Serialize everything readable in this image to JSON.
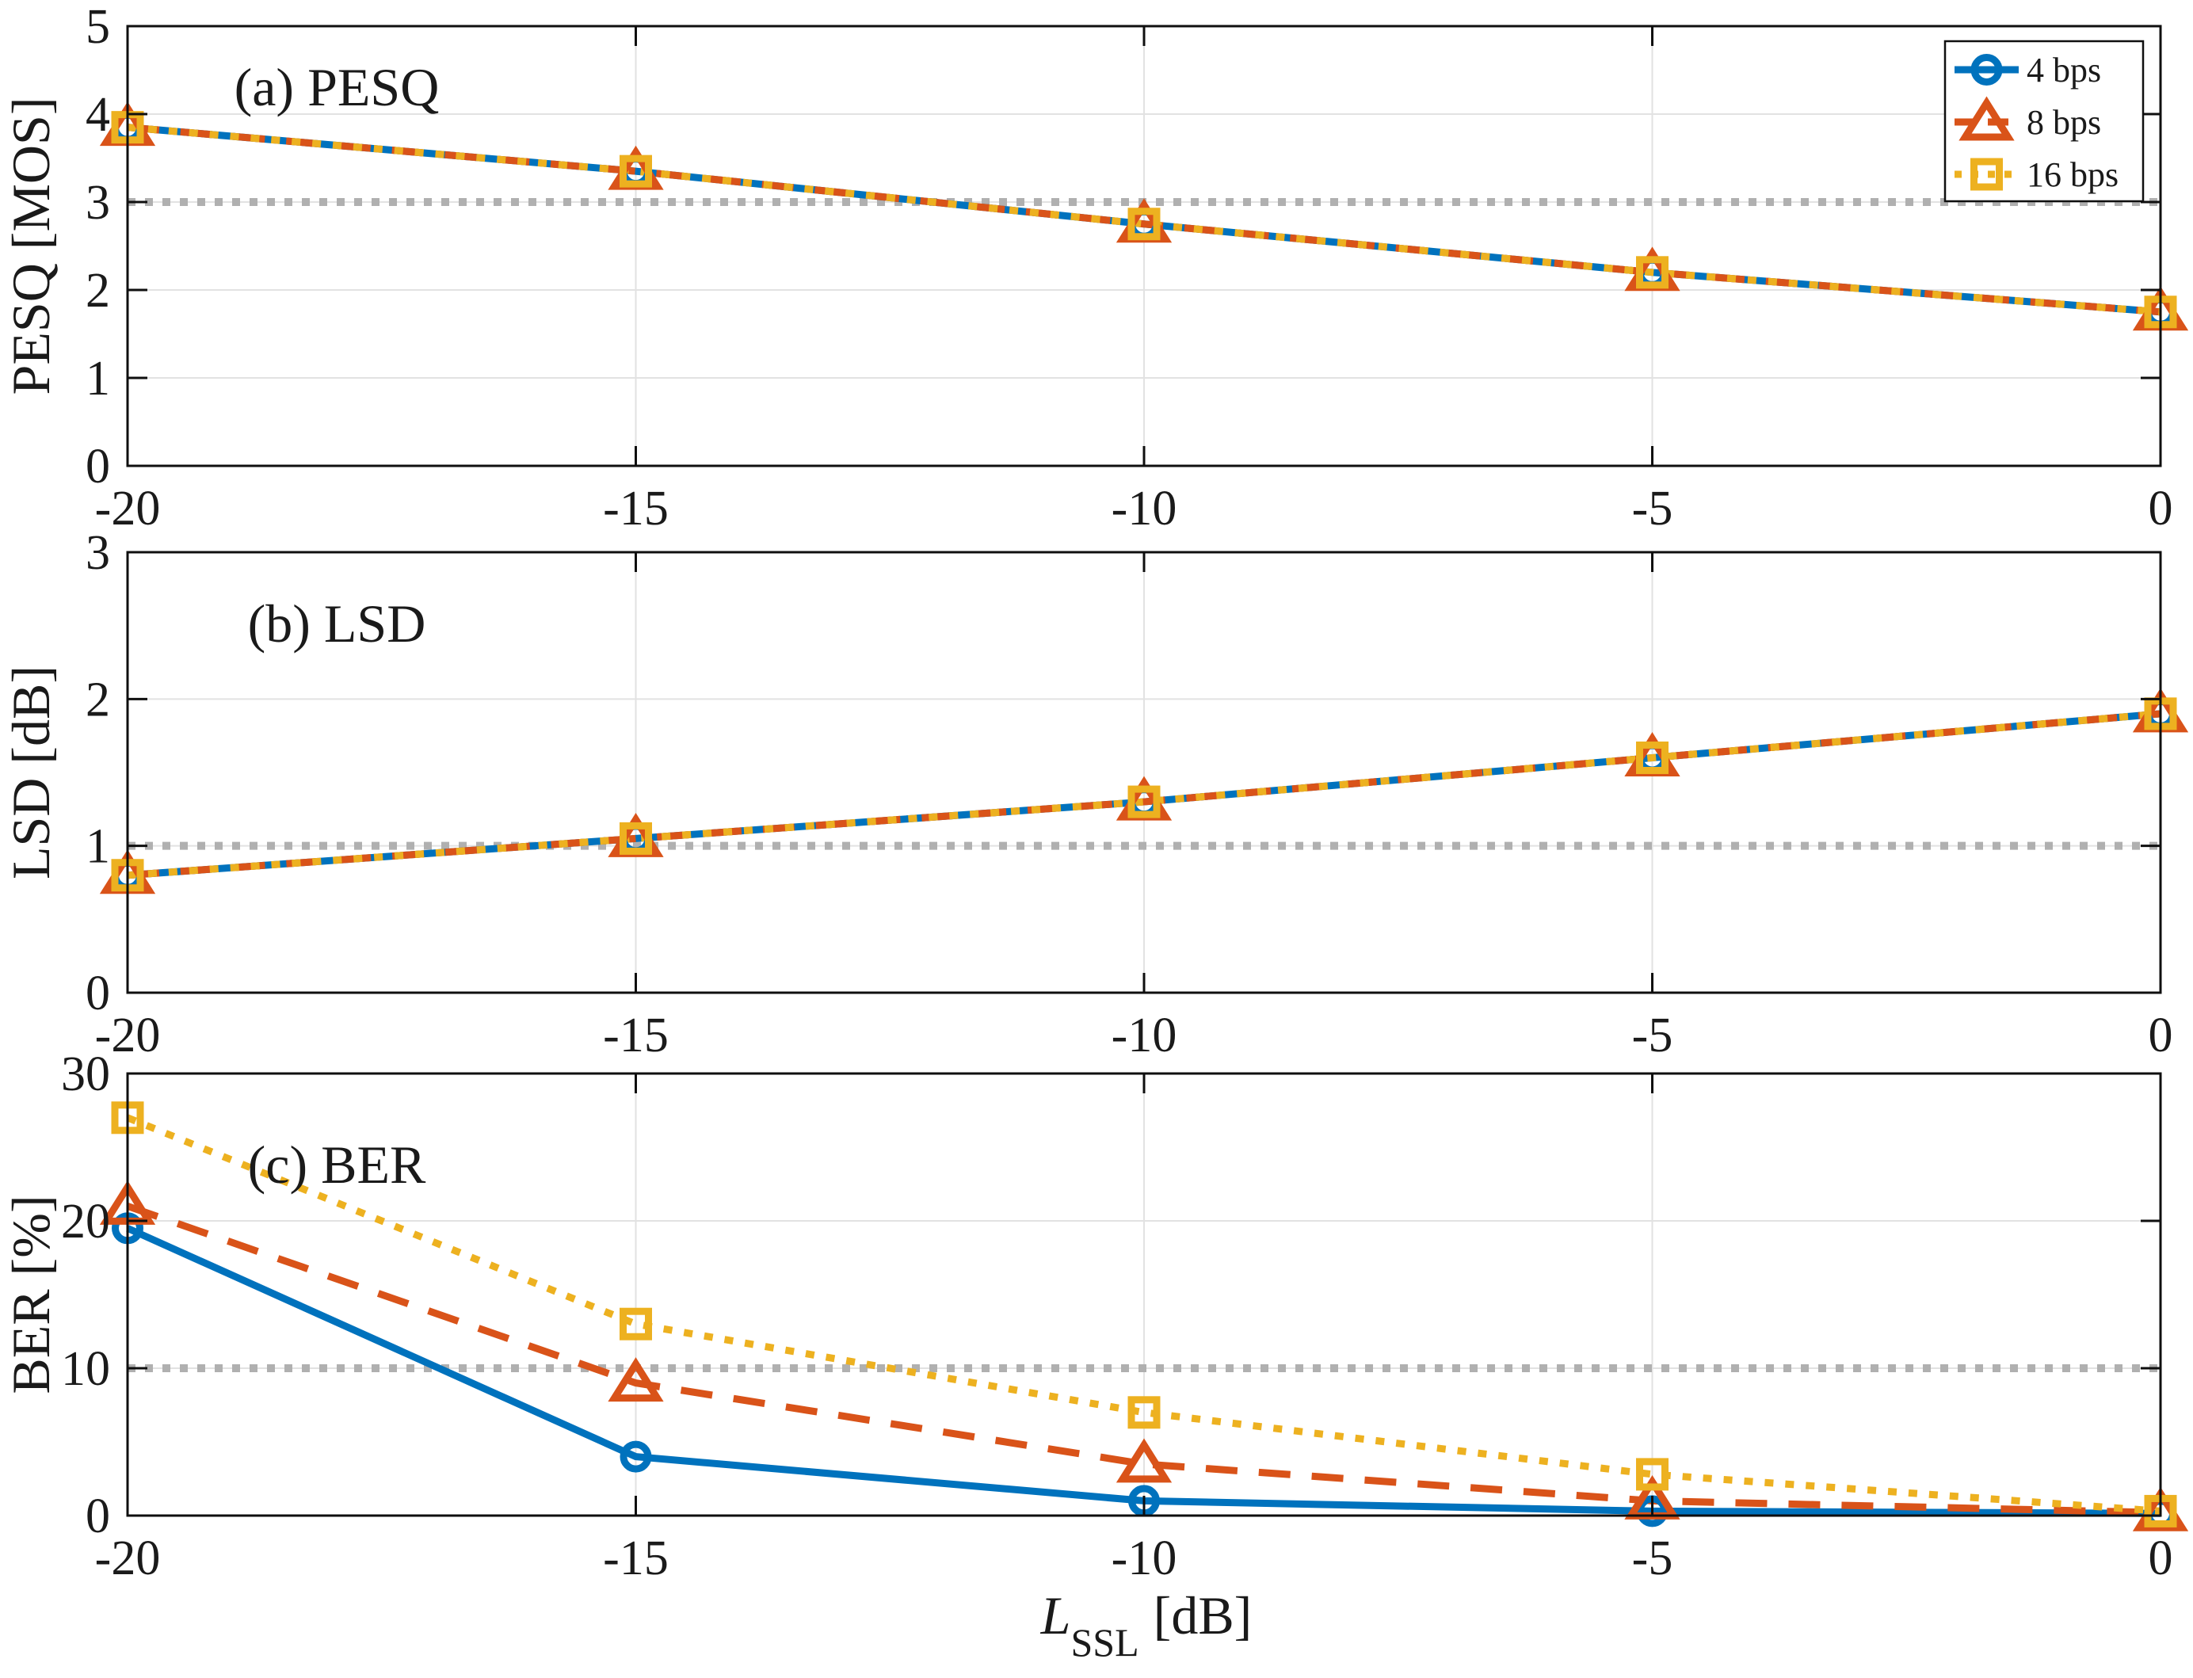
{
  "figure": {
    "background": "#FFFFFF",
    "x_axis": {
      "label": {
        "variable": "L",
        "subscript": "SSL",
        "unit": "[dB]"
      },
      "ticks": [
        "-20",
        "-15",
        "-10",
        "-5",
        "0"
      ],
      "tick_values": [
        -20,
        -15,
        -10,
        -5,
        0
      ],
      "range": [
        -20,
        0
      ]
    },
    "legend": {
      "position": "top-right",
      "items": [
        {
          "label": "4 bps",
          "color": "#0072BD",
          "line_style": "solid",
          "marker": "circle"
        },
        {
          "label": "8 bps",
          "color": "#D95319",
          "line_style": "dashed",
          "marker": "triangle-up"
        },
        {
          "label": "16 bps",
          "color": "#EDB120",
          "line_style": "dotted",
          "marker": "square"
        }
      ]
    },
    "grid_color": "#E2E2E2",
    "axes_color": "#0F0F0F",
    "reference_line_color": "#B0B0B0"
  },
  "chart_data": [
    {
      "type": "line",
      "panel": "a",
      "title": "(a) PESQ",
      "ylabel": "PESQ [MOS]",
      "xlabel": "",
      "x": [
        -20,
        -15,
        -10,
        -5,
        0
      ],
      "xlim": [
        -20,
        0
      ],
      "ylim": [
        0,
        5
      ],
      "yticks": [
        0,
        1,
        2,
        3,
        4,
        5
      ],
      "grid": true,
      "legend_position": "top-right",
      "reference_y": 3,
      "series": [
        {
          "name": "4 bps",
          "values": [
            3.85,
            3.35,
            2.75,
            2.2,
            1.75
          ]
        },
        {
          "name": "8 bps",
          "values": [
            3.85,
            3.35,
            2.75,
            2.2,
            1.75
          ]
        },
        {
          "name": "16 bps",
          "values": [
            3.85,
            3.35,
            2.75,
            2.2,
            1.75
          ]
        }
      ]
    },
    {
      "type": "line",
      "panel": "b",
      "title": "(b) LSD",
      "ylabel": "LSD [dB]",
      "xlabel": "",
      "x": [
        -20,
        -15,
        -10,
        -5,
        0
      ],
      "xlim": [
        -20,
        0
      ],
      "ylim": [
        0,
        3
      ],
      "yticks": [
        0,
        1,
        2,
        3
      ],
      "grid": true,
      "reference_y": 1,
      "series": [
        {
          "name": "4 bps",
          "values": [
            0.8,
            1.05,
            1.3,
            1.6,
            1.9
          ]
        },
        {
          "name": "8 bps",
          "values": [
            0.8,
            1.05,
            1.3,
            1.6,
            1.9
          ]
        },
        {
          "name": "16 bps",
          "values": [
            0.8,
            1.05,
            1.3,
            1.6,
            1.9
          ]
        }
      ]
    },
    {
      "type": "line",
      "panel": "c",
      "title": "(c) BER",
      "ylabel": "BER [%]",
      "xlabel": "L_SSL [dB]",
      "x": [
        -20,
        -15,
        -10,
        -5,
        0
      ],
      "xlim": [
        -20,
        0
      ],
      "ylim": [
        0,
        30
      ],
      "yticks": [
        0,
        10,
        20,
        30
      ],
      "grid": true,
      "reference_y": 10,
      "series": [
        {
          "name": "4 bps",
          "values": [
            19.5,
            4,
            1,
            0.3,
            0.15
          ]
        },
        {
          "name": "8 bps",
          "values": [
            21,
            9,
            3.5,
            1,
            0.2
          ]
        },
        {
          "name": "16 bps",
          "values": [
            27,
            13,
            7,
            2.8,
            0.3
          ]
        }
      ]
    }
  ]
}
